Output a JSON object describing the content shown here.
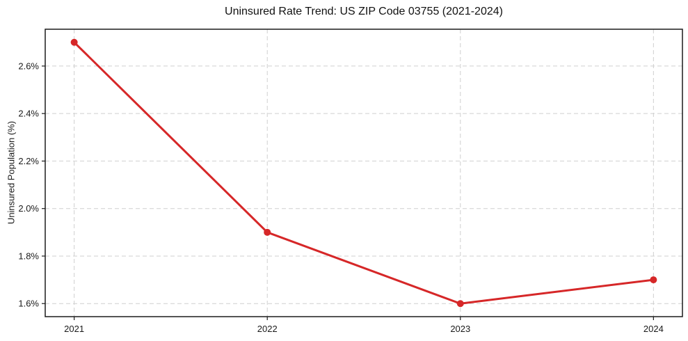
{
  "figure": {
    "background": "#ffffff"
  },
  "chart_data": {
    "type": "line",
    "title": "Uninsured Rate Trend: US ZIP Code 03755 (2021-2024)",
    "xlabel": "",
    "ylabel": "Uninsured Population (%)",
    "x": [
      2021,
      2022,
      2023,
      2024
    ],
    "values": [
      2.7,
      1.9,
      1.6,
      1.7
    ],
    "xticks": [
      2021,
      2022,
      2023,
      2024
    ],
    "xtick_labels": [
      "2021",
      "2022",
      "2023",
      "2024"
    ],
    "yticks": [
      1.6,
      1.8,
      2.0,
      2.2,
      2.4,
      2.6
    ],
    "ytick_labels": [
      "1.6%",
      "1.8%",
      "2.0%",
      "2.2%",
      "2.4%",
      "2.6%"
    ],
    "xlim": [
      2020.85,
      2024.15
    ],
    "ylim": [
      1.545,
      2.755
    ],
    "grid": true,
    "grid_style": "dashed",
    "legend": "none",
    "marker": "circle",
    "colors": {
      "line": "#d62728",
      "grid": "#cfcfcf",
      "spine": "#1a1a1a",
      "text": "#1a1a1a",
      "title": "#111111"
    }
  }
}
